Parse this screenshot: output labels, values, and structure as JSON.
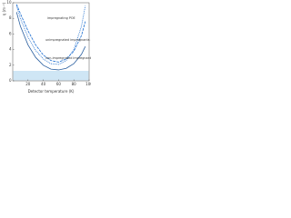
{
  "chart_data": {
    "type": "line",
    "y_label": "η (m⁻¹)",
    "x_label": "Detector temperature (K)",
    "x": [
      5,
      10,
      20,
      30,
      40,
      50,
      60,
      70,
      80,
      90,
      95
    ],
    "series": [
      {
        "name": "impregnating POE",
        "color": "#1f6fd0",
        "dash": "1,1",
        "values": [
          9.6,
          8.0,
          5.6,
          3.9,
          2.8,
          2.2,
          2.1,
          2.6,
          4.0,
          7.0,
          9.6
        ]
      },
      {
        "name": "unimpregnated impregnants (BKE, Oil)",
        "color": "#1f6fd0",
        "dash": "3,1",
        "values": [
          9.8,
          8.6,
          6.4,
          4.6,
          3.3,
          2.6,
          2.4,
          2.8,
          3.8,
          5.8,
          7.6
        ]
      },
      {
        "name": "non-impregnated impregnants (BKE, MMFB, PNC)",
        "color": "#2a5fa0",
        "dash": "",
        "values": [
          8.8,
          7.0,
          4.6,
          3.0,
          2.0,
          1.5,
          1.4,
          1.6,
          2.2,
          3.4,
          4.4
        ]
      }
    ],
    "xlim": [
      0,
      100
    ],
    "xticks": [
      20,
      40,
      60,
      80,
      100
    ],
    "ylim": [
      0,
      10
    ],
    "yticks": [
      0,
      2,
      4,
      6,
      8,
      10
    ]
  }
}
